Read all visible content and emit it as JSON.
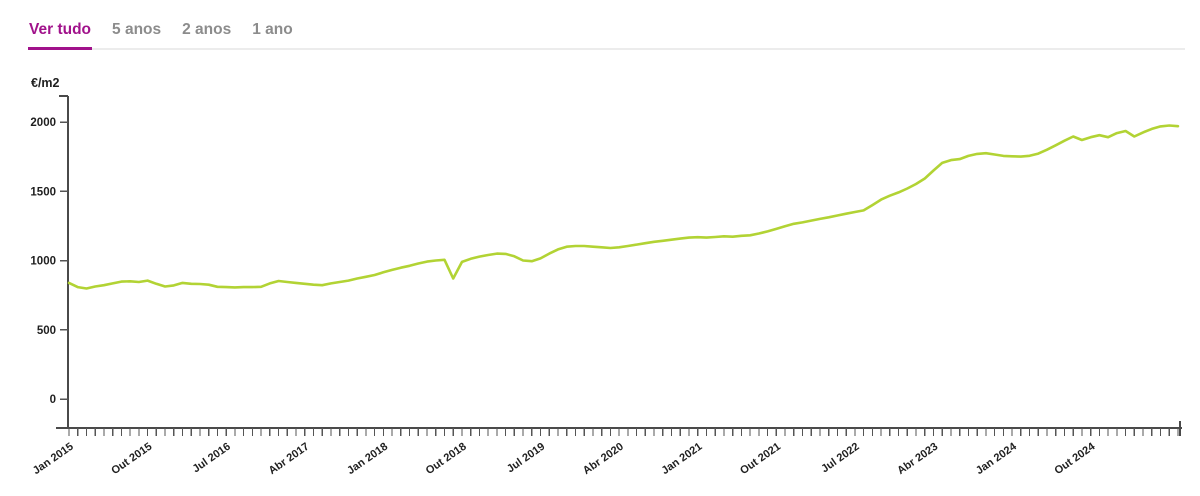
{
  "tabs": [
    {
      "label": "Ver tudo",
      "active": true
    },
    {
      "label": "5 anos",
      "active": false
    },
    {
      "label": "2 anos",
      "active": false
    },
    {
      "label": "1 ano",
      "active": false
    }
  ],
  "colors": {
    "accent": "#a1128b",
    "line": "#b2d334",
    "axis": "#4a4a4a",
    "tick": "#555555",
    "text": "#1f1f1f",
    "tab_inactive": "#8c8c8c",
    "divider": "#ececec"
  },
  "chart_data": {
    "type": "line",
    "title": "",
    "unit_label": "€/m2",
    "ylabel": "€/m2",
    "xlabel": "",
    "x_unit": "month",
    "x_start": "Jan 2015",
    "x_end": "Ago 2025",
    "x_tick_labels": [
      "Jan 2015",
      "Out 2015",
      "Jul 2016",
      "Abr 2017",
      "Jan 2018",
      "Out 2018",
      "Jul 2019",
      "Abr 2020",
      "Jan 2021",
      "Out 2021",
      "Jul 2022",
      "Abr 2023",
      "Jan 2024",
      "Out 2024"
    ],
    "x_tick_label_interval_months": 9,
    "y_ticks": [
      0,
      500,
      1000,
      1500,
      2000
    ],
    "ylim": [
      0,
      2200
    ],
    "grid": false,
    "legend": "none",
    "values": [
      838,
      808,
      798,
      812,
      822,
      835,
      848,
      850,
      845,
      855,
      832,
      812,
      820,
      838,
      832,
      830,
      825,
      810,
      808,
      806,
      808,
      808,
      810,
      835,
      852,
      845,
      838,
      832,
      825,
      822,
      835,
      845,
      855,
      870,
      882,
      895,
      915,
      932,
      948,
      962,
      978,
      992,
      1000,
      1005,
      870,
      990,
      1012,
      1028,
      1040,
      1050,
      1048,
      1030,
      1000,
      995,
      1015,
      1050,
      1080,
      1100,
      1105,
      1105,
      1100,
      1095,
      1090,
      1095,
      1105,
      1115,
      1125,
      1135,
      1142,
      1150,
      1158,
      1165,
      1168,
      1165,
      1170,
      1175,
      1172,
      1178,
      1182,
      1195,
      1210,
      1228,
      1248,
      1265,
      1275,
      1288,
      1300,
      1312,
      1325,
      1338,
      1350,
      1362,
      1400,
      1440,
      1468,
      1492,
      1520,
      1552,
      1592,
      1650,
      1705,
      1725,
      1732,
      1755,
      1770,
      1775,
      1765,
      1755,
      1752,
      1750,
      1756,
      1772,
      1800,
      1832,
      1865,
      1895,
      1870,
      1890,
      1905,
      1890,
      1920,
      1935,
      1895,
      1925,
      1950,
      1968,
      1975,
      1970
    ]
  }
}
